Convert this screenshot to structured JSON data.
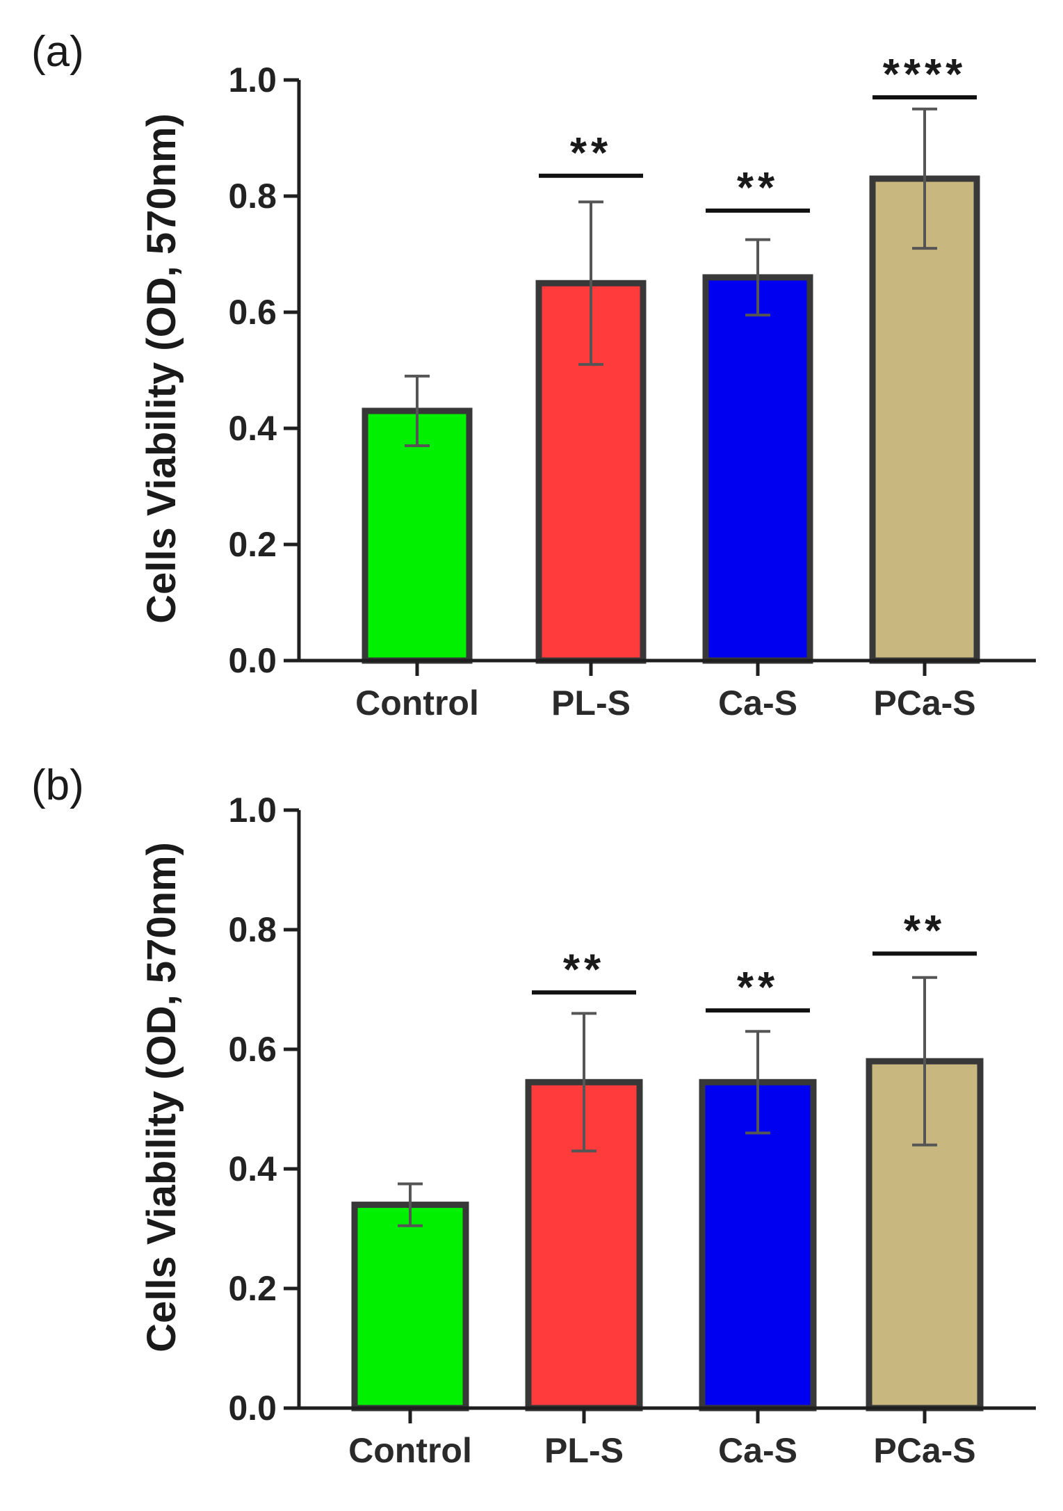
{
  "chart_data": [
    {
      "type": "bar",
      "panel_label": "(a)",
      "categories": [
        "Control",
        "PL-S",
        "Ca-S",
        "PCa-S"
      ],
      "values": [
        0.43,
        0.65,
        0.66,
        0.83
      ],
      "errors": [
        0.06,
        0.14,
        0.065,
        0.12
      ],
      "significance": [
        "",
        "**",
        "**",
        "****"
      ],
      "significance_line_y": [
        null,
        0.835,
        0.775,
        0.97
      ],
      "colors": [
        "#00f000",
        "#ff3b3b",
        "#0000f0",
        "#c9b780"
      ],
      "title": "",
      "xlabel": "",
      "ylabel": "Cells Viability (OD, 570nm)",
      "ylim": [
        0,
        1.0
      ],
      "yticks": [
        "0.0",
        "0.2",
        "0.4",
        "0.6",
        "0.8",
        "1.0"
      ],
      "grid": false
    },
    {
      "type": "bar",
      "panel_label": "(b)",
      "categories": [
        "Control",
        "PL-S",
        "Ca-S",
        "PCa-S"
      ],
      "values": [
        0.34,
        0.545,
        0.545,
        0.58
      ],
      "errors": [
        0.035,
        0.115,
        0.085,
        0.14
      ],
      "significance": [
        "",
        "**",
        "**",
        "**"
      ],
      "significance_line_y": [
        null,
        0.695,
        0.665,
        0.76
      ],
      "colors": [
        "#00f000",
        "#ff3b3b",
        "#0000f0",
        "#c9b780"
      ],
      "title": "",
      "xlabel": "",
      "ylabel": "Cells Viability (OD, 570nm)",
      "ylim": [
        0,
        1.0
      ],
      "yticks": [
        "0.0",
        "0.2",
        "0.4",
        "0.6",
        "0.8",
        "1.0"
      ],
      "grid": false
    }
  ]
}
